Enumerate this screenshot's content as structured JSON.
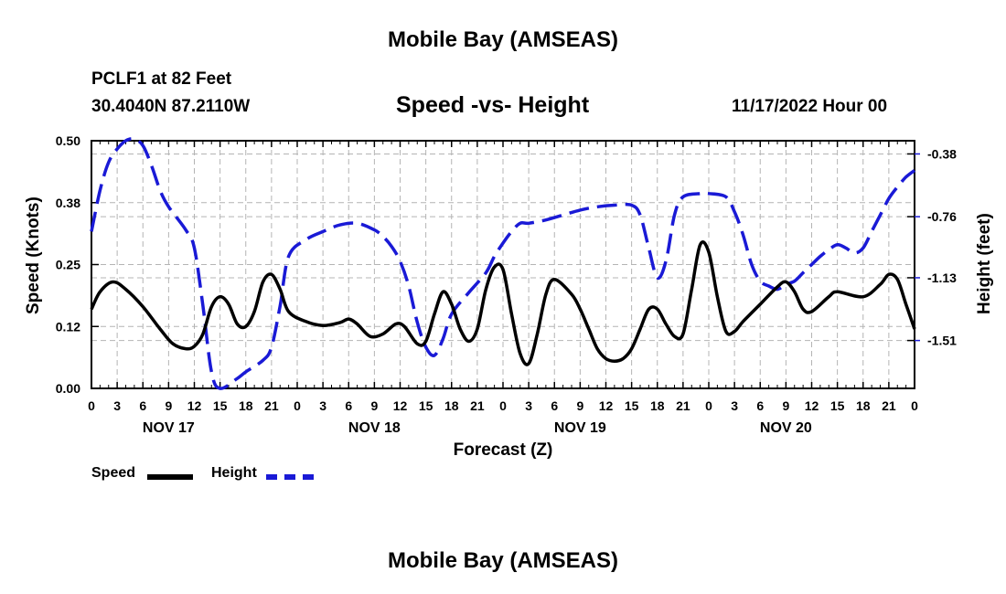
{
  "title": "Mobile Bay (AMSEAS)",
  "footer_title": "Mobile Bay (AMSEAS)",
  "station": "PCLF1 at 82 Feet",
  "coordinates": "30.4040N  87.2110W",
  "datetime": "11/17/2022 Hour 00",
  "chart_data": {
    "type": "line",
    "title": "Speed -vs- Height",
    "xlabel": "Forecast (Z)",
    "ylabel_left": "Speed (Knots)",
    "ylabel_right": "Height (feet)",
    "xlim_hours": [
      0,
      96
    ],
    "ylim_left": [
      0,
      0.5
    ],
    "ylim_right": [
      -1.8,
      -0.3
    ],
    "grid": true,
    "x_tick_labels": [
      "0",
      "3",
      "6",
      "9",
      "12",
      "15",
      "18",
      "21",
      "0",
      "3",
      "6",
      "9",
      "12",
      "15",
      "18",
      "21",
      "0",
      "3",
      "6",
      "9",
      "12",
      "15",
      "18",
      "21",
      "0",
      "3",
      "6",
      "9",
      "12",
      "15",
      "18",
      "21",
      "0"
    ],
    "day_labels": [
      {
        "hour": 9,
        "label": "NOV 17"
      },
      {
        "hour": 33,
        "label": "NOV 18"
      },
      {
        "hour": 57,
        "label": "NOV 19"
      },
      {
        "hour": 81,
        "label": "NOV 20"
      }
    ],
    "left_ticks": [
      "0.00",
      "0.12",
      "0.25",
      "0.38",
      "0.50"
    ],
    "left_tick_values": [
      0,
      0.125,
      0.25,
      0.375,
      0.5
    ],
    "right_ticks": [
      "-1.51",
      "-1.13",
      "-0.76",
      "-0.38"
    ],
    "right_tick_values": [
      -1.51,
      -1.13,
      -0.76,
      -0.38
    ],
    "series": [
      {
        "name": "Speed",
        "axis": "left",
        "color": "#000000",
        "style": "solid",
        "points": [
          [
            0,
            0.16
          ],
          [
            1,
            0.195
          ],
          [
            2.5,
            0.215
          ],
          [
            4,
            0.2
          ],
          [
            6,
            0.165
          ],
          [
            8,
            0.12
          ],
          [
            9.5,
            0.09
          ],
          [
            11,
            0.08
          ],
          [
            12,
            0.085
          ],
          [
            13,
            0.11
          ],
          [
            14,
            0.165
          ],
          [
            15,
            0.185
          ],
          [
            16,
            0.17
          ],
          [
            17,
            0.13
          ],
          [
            18,
            0.125
          ],
          [
            19,
            0.155
          ],
          [
            20,
            0.215
          ],
          [
            21,
            0.23
          ],
          [
            22,
            0.2
          ],
          [
            23,
            0.155
          ],
          [
            25,
            0.135
          ],
          [
            27,
            0.127
          ],
          [
            29,
            0.133
          ],
          [
            30,
            0.14
          ],
          [
            31,
            0.13
          ],
          [
            32.5,
            0.105
          ],
          [
            34,
            0.11
          ],
          [
            35.5,
            0.13
          ],
          [
            36.5,
            0.125
          ],
          [
            38,
            0.09
          ],
          [
            39,
            0.095
          ],
          [
            40,
            0.15
          ],
          [
            41,
            0.195
          ],
          [
            42,
            0.17
          ],
          [
            43,
            0.12
          ],
          [
            44,
            0.095
          ],
          [
            45,
            0.12
          ],
          [
            46,
            0.2
          ],
          [
            47,
            0.245
          ],
          [
            48,
            0.24
          ],
          [
            49,
            0.15
          ],
          [
            50,
            0.07
          ],
          [
            51,
            0.05
          ],
          [
            52,
            0.11
          ],
          [
            53,
            0.19
          ],
          [
            54,
            0.22
          ],
          [
            56,
            0.19
          ],
          [
            57,
            0.16
          ],
          [
            58,
            0.12
          ],
          [
            59,
            0.08
          ],
          [
            60,
            0.06
          ],
          [
            61,
            0.055
          ],
          [
            62,
            0.06
          ],
          [
            63,
            0.08
          ],
          [
            64,
            0.12
          ],
          [
            65,
            0.16
          ],
          [
            66,
            0.16
          ],
          [
            67,
            0.13
          ],
          [
            68,
            0.105
          ],
          [
            69,
            0.11
          ],
          [
            70,
            0.2
          ],
          [
            71,
            0.29
          ],
          [
            72,
            0.275
          ],
          [
            73,
            0.185
          ],
          [
            74,
            0.115
          ],
          [
            75,
            0.115
          ],
          [
            76,
            0.135
          ],
          [
            78,
            0.17
          ],
          [
            80,
            0.205
          ],
          [
            81,
            0.215
          ],
          [
            82,
            0.195
          ],
          [
            83,
            0.16
          ],
          [
            84,
            0.155
          ],
          [
            86,
            0.185
          ],
          [
            87,
            0.195
          ],
          [
            90,
            0.185
          ],
          [
            92,
            0.21
          ],
          [
            93,
            0.23
          ],
          [
            94,
            0.22
          ],
          [
            95,
            0.17
          ],
          [
            96,
            0.12
          ]
        ]
      },
      {
        "name": "Height",
        "axis": "right",
        "color": "#1a1ad6",
        "style": "dashed",
        "points": [
          [
            0,
            -0.85
          ],
          [
            1,
            -0.6
          ],
          [
            2,
            -0.43
          ],
          [
            3,
            -0.35
          ],
          [
            4,
            -0.3
          ],
          [
            5,
            -0.29
          ],
          [
            6,
            -0.33
          ],
          [
            7,
            -0.45
          ],
          [
            8,
            -0.6
          ],
          [
            9,
            -0.7
          ],
          [
            11,
            -0.84
          ],
          [
            12,
            -0.95
          ],
          [
            13,
            -1.3
          ],
          [
            14,
            -1.7
          ],
          [
            15,
            -1.8
          ],
          [
            17,
            -1.74
          ],
          [
            18,
            -1.7
          ],
          [
            20,
            -1.63
          ],
          [
            21,
            -1.55
          ],
          [
            22,
            -1.3
          ],
          [
            23,
            -1.0
          ],
          [
            25,
            -0.9
          ],
          [
            27,
            -0.85
          ],
          [
            29,
            -0.81
          ],
          [
            31,
            -0.8
          ],
          [
            33,
            -0.84
          ],
          [
            34,
            -0.88
          ],
          [
            35,
            -0.94
          ],
          [
            36,
            -1.03
          ],
          [
            37,
            -1.18
          ],
          [
            38,
            -1.4
          ],
          [
            39,
            -1.55
          ],
          [
            40,
            -1.6
          ],
          [
            41,
            -1.5
          ],
          [
            42,
            -1.35
          ],
          [
            44,
            -1.22
          ],
          [
            46,
            -1.1
          ],
          [
            47,
            -1.0
          ],
          [
            48,
            -0.92
          ],
          [
            49,
            -0.85
          ],
          [
            50,
            -0.8
          ],
          [
            51,
            -0.8
          ],
          [
            53,
            -0.78
          ],
          [
            55,
            -0.75
          ],
          [
            57,
            -0.72
          ],
          [
            59,
            -0.7
          ],
          [
            61,
            -0.69
          ],
          [
            63,
            -0.69
          ],
          [
            64,
            -0.75
          ],
          [
            65,
            -0.95
          ],
          [
            66,
            -1.13
          ],
          [
            67,
            -1.03
          ],
          [
            68,
            -0.75
          ],
          [
            69,
            -0.64
          ],
          [
            71,
            -0.62
          ],
          [
            72,
            -0.62
          ],
          [
            74,
            -0.64
          ],
          [
            75,
            -0.73
          ],
          [
            76,
            -0.87
          ],
          [
            77,
            -1.05
          ],
          [
            78,
            -1.15
          ],
          [
            79,
            -1.18
          ],
          [
            80,
            -1.2
          ],
          [
            81,
            -1.17
          ],
          [
            82,
            -1.15
          ],
          [
            83,
            -1.1
          ],
          [
            84,
            -1.05
          ],
          [
            85,
            -1.0
          ],
          [
            86,
            -0.96
          ],
          [
            87,
            -0.93
          ],
          [
            88,
            -0.95
          ],
          [
            89,
            -0.98
          ],
          [
            90,
            -0.95
          ],
          [
            91,
            -0.85
          ],
          [
            92,
            -0.75
          ],
          [
            93,
            -0.65
          ],
          [
            94,
            -0.58
          ],
          [
            95,
            -0.52
          ],
          [
            96,
            -0.48
          ]
        ]
      }
    ]
  },
  "legend": {
    "speed_label": "Speed",
    "height_label": "Height"
  }
}
